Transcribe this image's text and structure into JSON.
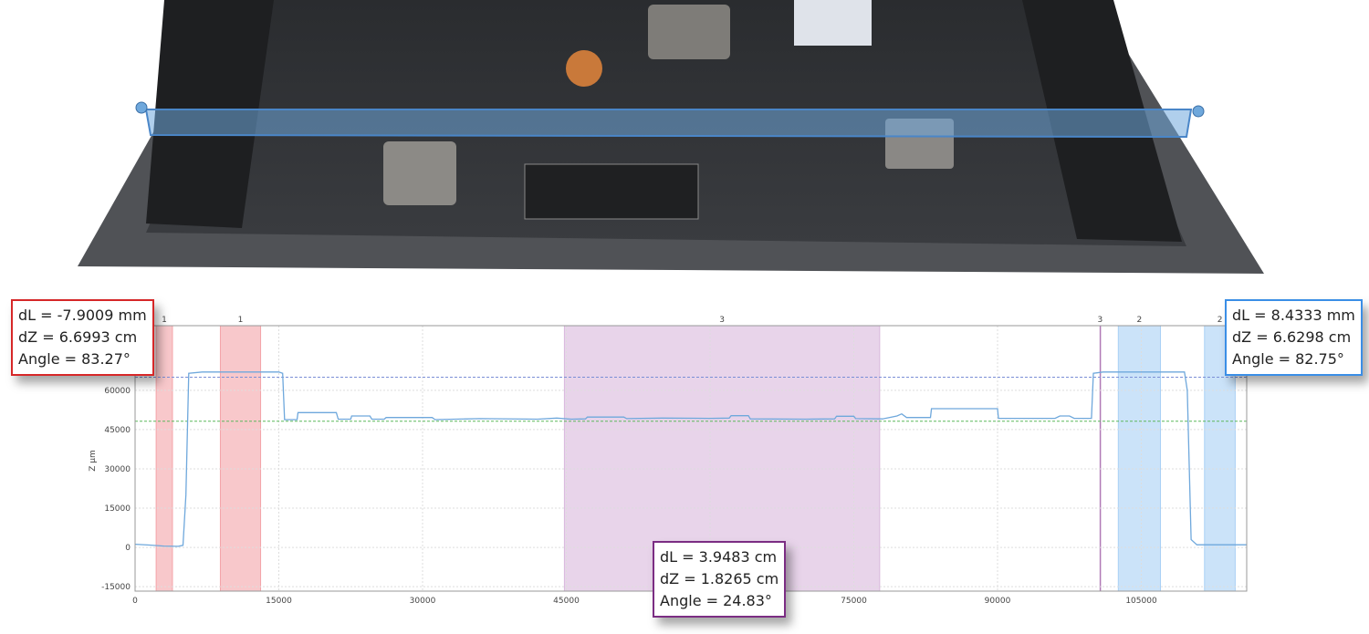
{
  "photo": {
    "description_icon": "pcb-board-with-profile-line"
  },
  "chart_data": {
    "type": "line",
    "title": "",
    "xlabel": "",
    "ylabel": "Z µm",
    "xlim": [
      0,
      116000
    ],
    "ylim": [
      -16700,
      84700
    ],
    "xticks": [
      0,
      15000,
      30000,
      45000,
      60000,
      75000,
      90000,
      105000
    ],
    "xtick_labels": [
      "0",
      "15000",
      "30000",
      "45000",
      "",
      "75000",
      "90000",
      "105000"
    ],
    "yticks": [
      -15000,
      0,
      15000,
      30000,
      45000,
      60000
    ],
    "ytick_labels": [
      "-15000",
      "0",
      "15000",
      "30000",
      "45000",
      "60000"
    ],
    "grid": true,
    "series": [
      {
        "color": "#6fa8dc",
        "points": [
          [
            0,
            1200
          ],
          [
            1500,
            900
          ],
          [
            3000,
            500
          ],
          [
            4500,
            400
          ],
          [
            5000,
            800
          ],
          [
            5300,
            20000
          ],
          [
            5600,
            66500
          ],
          [
            7000,
            67000
          ],
          [
            15000,
            67000
          ],
          [
            15400,
            66500
          ],
          [
            15600,
            48800
          ],
          [
            16900,
            48800
          ],
          [
            17000,
            51500
          ],
          [
            21000,
            51500
          ],
          [
            21200,
            49000
          ],
          [
            22500,
            49000
          ],
          [
            22600,
            50200
          ],
          [
            24500,
            50200
          ],
          [
            24700,
            49000
          ],
          [
            26000,
            49000
          ],
          [
            26200,
            49600
          ],
          [
            31000,
            49600
          ],
          [
            31300,
            48800
          ],
          [
            36000,
            49200
          ],
          [
            42000,
            49000
          ],
          [
            44000,
            49400
          ],
          [
            45500,
            49000
          ],
          [
            47000,
            49100
          ],
          [
            47200,
            49800
          ],
          [
            51000,
            49800
          ],
          [
            51300,
            49200
          ],
          [
            55000,
            49400
          ],
          [
            60000,
            49300
          ],
          [
            62000,
            49400
          ],
          [
            62200,
            50300
          ],
          [
            64000,
            50300
          ],
          [
            64200,
            49100
          ],
          [
            70000,
            49000
          ],
          [
            73000,
            49100
          ],
          [
            73200,
            50100
          ],
          [
            75000,
            50100
          ],
          [
            75200,
            49200
          ],
          [
            78000,
            49100
          ],
          [
            79500,
            50200
          ],
          [
            80000,
            51000
          ],
          [
            80500,
            49600
          ],
          [
            83000,
            49600
          ],
          [
            83100,
            53000
          ],
          [
            90000,
            53000
          ],
          [
            90100,
            49300
          ],
          [
            96000,
            49300
          ],
          [
            96500,
            50200
          ],
          [
            97500,
            50200
          ],
          [
            98000,
            49300
          ],
          [
            99800,
            49300
          ],
          [
            100000,
            66500
          ],
          [
            101000,
            67000
          ],
          [
            109500,
            67000
          ],
          [
            109800,
            60000
          ],
          [
            110200,
            3000
          ],
          [
            110800,
            1000
          ],
          [
            116000,
            1000
          ]
        ]
      }
    ],
    "reference_lines": [
      {
        "y": 65000,
        "color": "#7b8fd6",
        "style": "dashed"
      },
      {
        "y": 48200,
        "color": "#5cb85c",
        "style": "dashed"
      }
    ],
    "bands": [
      {
        "label": "1",
        "x": [
          2200,
          3900
        ],
        "color": "#f4a3a8"
      },
      {
        "label": "1",
        "x": [
          8900,
          13100
        ],
        "color": "#f4a3a8"
      },
      {
        "label": "3",
        "x": [
          44800,
          77700
        ],
        "color": "#d9b8dc"
      },
      {
        "label": "3",
        "x": [
          100700,
          100700
        ],
        "color": "#b07ab6"
      },
      {
        "label": "2",
        "x": [
          102600,
          107000
        ],
        "color": "#a9d0f5"
      },
      {
        "label": "2",
        "x": [
          111600,
          114800
        ],
        "color": "#a9d0f5"
      }
    ]
  },
  "callouts": {
    "red": {
      "color": "#d62728",
      "dl": "dL = -7.9009 mm",
      "dz": "dZ = 6.6993 cm",
      "angle": "Angle = 83.27°"
    },
    "purple": {
      "color": "#7b2d83",
      "dl": "dL = 3.9483 cm",
      "dz": "dZ = 1.8265 cm",
      "angle": "Angle = 24.83°"
    },
    "blue": {
      "color": "#3a8ee6",
      "dl": "dL = 8.4333 mm",
      "dz": "dZ = 6.6298 cm",
      "angle": "Angle = 82.75°"
    }
  }
}
